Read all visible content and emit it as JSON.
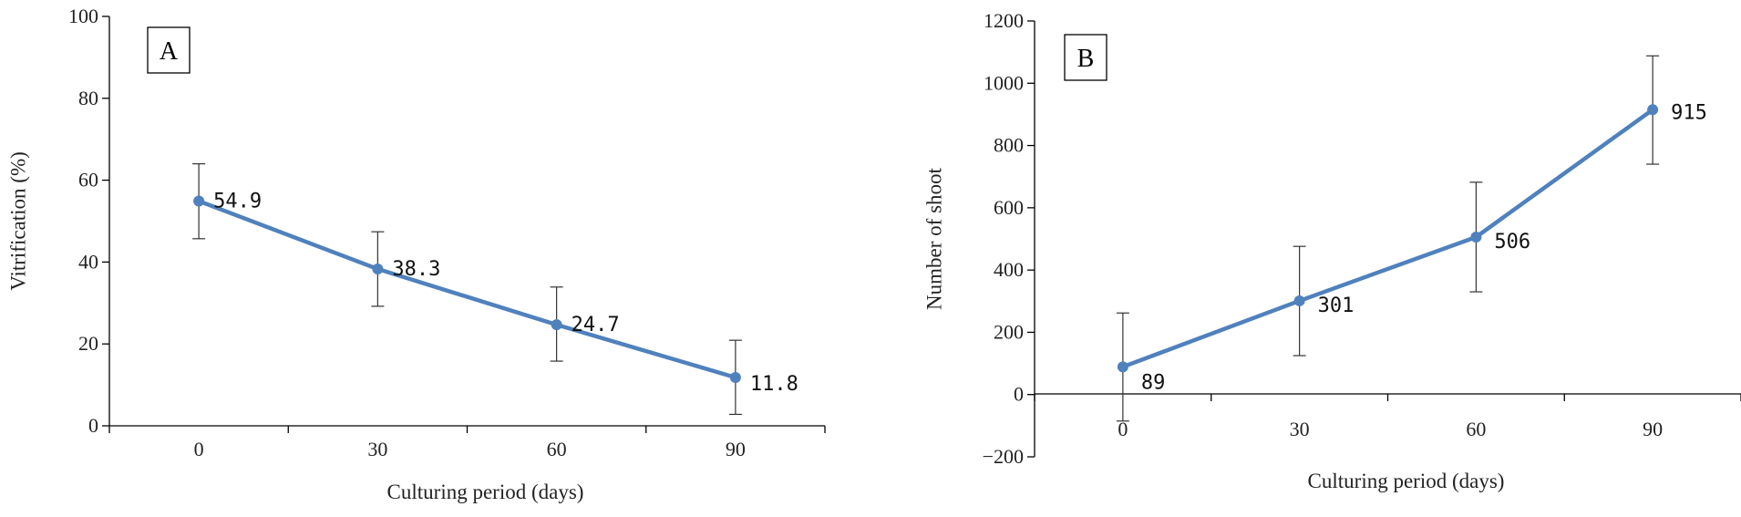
{
  "chart_data": [
    {
      "type": "line",
      "panel_label": "A",
      "title": "",
      "xlabel": "Culturing period (days)",
      "ylabel": "Vitrification (%)",
      "x": [
        0,
        30,
        60,
        90
      ],
      "x_tick_labels": [
        "0",
        "30",
        "60",
        "90"
      ],
      "ylim": [
        0,
        100
      ],
      "y_ticks": [
        0,
        20,
        40,
        60,
        80,
        100
      ],
      "y_tick_labels": [
        "0",
        "20",
        "40",
        "60",
        "80",
        "100"
      ],
      "series": [
        {
          "name": "Vitrification",
          "values": [
            54.9,
            38.3,
            24.7,
            11.8
          ],
          "error_low": [
            45.7,
            29.2,
            15.8,
            2.8
          ],
          "error_high": [
            64.0,
            47.4,
            33.9,
            20.9
          ],
          "data_labels": [
            "54.9",
            "38.3",
            "24.7",
            "11.8"
          ],
          "color": "#4f81bd"
        }
      ]
    },
    {
      "type": "line",
      "panel_label": "B",
      "title": "",
      "xlabel": "Culturing period (days)",
      "ylabel": "Number of shoot",
      "x": [
        0,
        30,
        60,
        90
      ],
      "x_tick_labels": [
        "0",
        "30",
        "60",
        "90"
      ],
      "ylim": [
        -200,
        1200
      ],
      "y_ticks": [
        -200,
        0,
        200,
        400,
        600,
        800,
        1000,
        1200
      ],
      "y_tick_labels": [
        "−200",
        "0",
        "200",
        "400",
        "600",
        "800",
        "1000",
        "1200"
      ],
      "series": [
        {
          "name": "Number of shoot",
          "values": [
            89,
            301,
            506,
            915
          ],
          "error_low": [
            -85,
            125,
            330,
            740
          ],
          "error_high": [
            262,
            476,
            682,
            1088
          ],
          "data_labels": [
            "89",
            "301",
            "506",
            "915"
          ],
          "color": "#4f81bd"
        }
      ]
    }
  ]
}
